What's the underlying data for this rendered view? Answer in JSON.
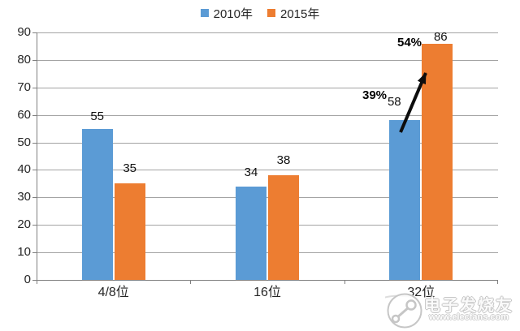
{
  "chart_data": {
    "type": "bar",
    "title": "",
    "categories": [
      "4/8位",
      "16位",
      "32位"
    ],
    "series": [
      {
        "name": "2010年",
        "color": "#5B9BD5",
        "values": [
          55,
          34,
          58
        ]
      },
      {
        "name": "2015年",
        "color": "#ED7D31",
        "values": [
          35,
          38,
          86
        ]
      }
    ],
    "ylim": [
      0,
      90
    ],
    "ytick_step": 10,
    "grid": true,
    "data_labels": true,
    "legend_position": "top-center",
    "annotations": [
      {
        "text": "39%"
      },
      {
        "text": "54%"
      }
    ],
    "arrow_note": "black arrow from 32位 2010年 bar up to 32位 2015年 bar"
  },
  "watermark": {
    "brand": "电子发烧友",
    "url": "www.elecfans.com"
  }
}
